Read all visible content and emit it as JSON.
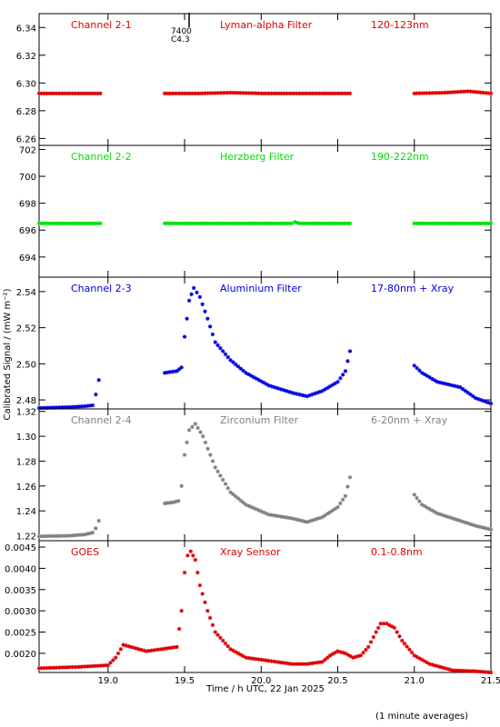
{
  "xlabel": "Time / h UTC, 22 Jan 2025",
  "ylabel": "Calibrated Signal / (mW m⁻²)",
  "footer": "(1 minute averages)",
  "marker": {
    "label1": "7400",
    "label2": "C4.3"
  },
  "chart_data": [
    {
      "type": "scatter",
      "labels": [
        "Channel 2-1",
        "Lyman-alpha Filter",
        "120-123nm"
      ],
      "color": "#e00000",
      "xlim": [
        18.55,
        21.5
      ],
      "ylim": [
        6.255,
        6.35
      ],
      "yticks": [
        6.26,
        6.28,
        6.3,
        6.32,
        6.34
      ],
      "ytick_labels": [
        "6.26",
        "6.28",
        "6.30",
        "6.32",
        "6.34"
      ],
      "segments": [
        {
          "x": [
            18.55,
            18.95
          ],
          "y": [
            6.2925,
            6.2925
          ]
        },
        {
          "x": [
            19.37,
            19.6,
            19.8,
            20.0,
            20.25,
            20.58
          ],
          "y": [
            6.2925,
            6.2925,
            6.293,
            6.2925,
            6.2925,
            6.2925
          ]
        },
        {
          "x": [
            21.0,
            21.2,
            21.35,
            21.5
          ],
          "y": [
            6.2925,
            6.293,
            6.294,
            6.2925
          ]
        }
      ]
    },
    {
      "type": "scatter",
      "labels": [
        "Channel 2-2",
        "Herzberg Filter",
        "190-222nm"
      ],
      "color": "#00e000",
      "xlim": [
        18.55,
        21.5
      ],
      "ylim": [
        692.5,
        702.3
      ],
      "yticks": [
        694,
        696,
        698,
        700,
        702
      ],
      "ytick_labels": [
        "694",
        "696",
        "698",
        "700",
        "702"
      ],
      "segments": [
        {
          "x": [
            18.55,
            18.95
          ],
          "y": [
            696.5,
            696.5
          ]
        },
        {
          "x": [
            19.37,
            20.2,
            20.22,
            20.25,
            20.58
          ],
          "y": [
            696.5,
            696.5,
            696.6,
            696.5,
            696.5
          ]
        },
        {
          "x": [
            21.0,
            21.5
          ],
          "y": [
            696.5,
            696.5
          ]
        }
      ]
    },
    {
      "type": "scatter",
      "labels": [
        "Channel 2-3",
        "Aluminium Filter",
        "17-80nm + Xray"
      ],
      "color": "#0000e0",
      "xlim": [
        18.55,
        21.5
      ],
      "ylim": [
        2.475,
        2.548
      ],
      "yticks": [
        2.48,
        2.5,
        2.52,
        2.54
      ],
      "ytick_labels": [
        "2.48",
        "2.50",
        "2.52",
        "2.54"
      ],
      "segments": [
        {
          "x": [
            18.55,
            18.75,
            18.85,
            18.9,
            18.92,
            18.94
          ],
          "y": [
            2.4755,
            2.476,
            2.4765,
            2.477,
            2.483,
            2.491
          ]
        },
        {
          "x": [
            19.37,
            19.45,
            19.48,
            19.5,
            19.53,
            19.56,
            19.6,
            19.65,
            19.7,
            19.8,
            19.9,
            20.05,
            20.2,
            20.3,
            20.4,
            20.5,
            20.55,
            20.58
          ],
          "y": [
            2.495,
            2.496,
            2.498,
            2.515,
            2.535,
            2.542,
            2.537,
            2.525,
            2.512,
            2.502,
            2.495,
            2.488,
            2.484,
            2.482,
            2.485,
            2.49,
            2.496,
            2.507
          ]
        },
        {
          "x": [
            21.0,
            21.05,
            21.15,
            21.3,
            21.4,
            21.5
          ],
          "y": [
            2.499,
            2.495,
            2.49,
            2.487,
            2.481,
            2.478
          ]
        }
      ]
    },
    {
      "type": "scatter",
      "labels": [
        "Channel 2-4",
        "Zirconium Filter",
        "6-20nm + Xray"
      ],
      "color": "#808080",
      "xlim": [
        18.55,
        21.5
      ],
      "ylim": [
        1.216,
        1.322
      ],
      "yticks": [
        1.22,
        1.24,
        1.26,
        1.28,
        1.3,
        1.32
      ],
      "ytick_labels": [
        "1.22",
        "1.24",
        "1.26",
        "1.28",
        "1.30",
        "1.32"
      ],
      "segments": [
        {
          "x": [
            18.55,
            18.75,
            18.85,
            18.9,
            18.92,
            18.94
          ],
          "y": [
            1.2195,
            1.22,
            1.221,
            1.2225,
            1.226,
            1.232
          ]
        },
        {
          "x": [
            19.37,
            19.43,
            19.46,
            19.48,
            19.5,
            19.53,
            19.57,
            19.62,
            19.7,
            19.8,
            19.9,
            20.05,
            20.2,
            20.3,
            20.4,
            20.5,
            20.55,
            20.58
          ],
          "y": [
            1.246,
            1.247,
            1.248,
            1.26,
            1.285,
            1.305,
            1.31,
            1.3,
            1.275,
            1.255,
            1.245,
            1.237,
            1.234,
            1.231,
            1.235,
            1.243,
            1.252,
            1.267
          ]
        },
        {
          "x": [
            21.0,
            21.05,
            21.15,
            21.3,
            21.4,
            21.5
          ],
          "y": [
            1.253,
            1.245,
            1.238,
            1.232,
            1.228,
            1.225
          ]
        }
      ]
    },
    {
      "type": "scatter",
      "labels": [
        "GOES",
        "Xray Sensor",
        "0.1-0.8nm"
      ],
      "color": "#e00000",
      "xlim": [
        18.55,
        21.5
      ],
      "ylim": [
        0.00155,
        0.00465
      ],
      "yticks": [
        0.002,
        0.0025,
        0.003,
        0.0035,
        0.004,
        0.0045
      ],
      "ytick_labels": [
        "0.0020",
        "0.0025",
        "0.0030",
        "0.0035",
        "0.0040",
        "0.0045"
      ],
      "segments": [
        {
          "x": [
            18.55,
            18.8,
            19.0,
            19.05,
            19.1,
            19.15,
            19.25,
            19.35,
            19.45,
            19.48,
            19.5,
            19.52,
            19.54,
            19.57,
            19.6,
            19.65,
            19.7,
            19.8,
            19.9,
            20.0,
            20.1,
            20.2,
            20.3,
            20.4,
            20.45,
            20.5,
            20.55,
            20.6,
            20.65,
            20.7,
            20.75,
            20.78,
            20.82,
            20.87,
            20.92,
            21.0,
            21.1,
            21.25,
            21.4,
            21.5
          ],
          "y": [
            0.00165,
            0.00168,
            0.00172,
            0.0019,
            0.0022,
            0.00215,
            0.00205,
            0.0021,
            0.00215,
            0.003,
            0.0039,
            0.0043,
            0.0044,
            0.0042,
            0.0036,
            0.003,
            0.0025,
            0.0021,
            0.0019,
            0.00185,
            0.0018,
            0.00175,
            0.00175,
            0.0018,
            0.00195,
            0.00205,
            0.002,
            0.0019,
            0.00195,
            0.00215,
            0.0025,
            0.0027,
            0.0027,
            0.0026,
            0.0023,
            0.00195,
            0.00175,
            0.0016,
            0.00158,
            0.00155
          ]
        }
      ]
    }
  ],
  "xticks": [
    19.0,
    19.5,
    20.0,
    20.5,
    21.0,
    21.5
  ],
  "xtick_labels": [
    "19.0",
    "19.5",
    "20.0",
    "20.5",
    "21.0",
    "21.5"
  ]
}
